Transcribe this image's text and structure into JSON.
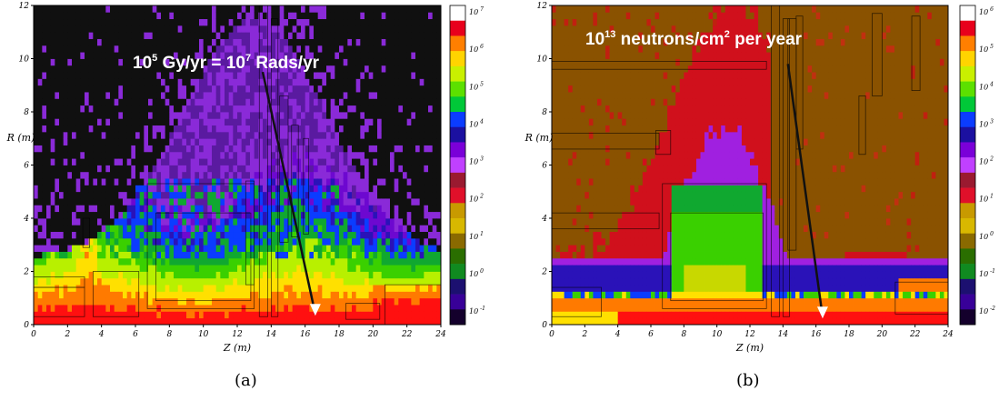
{
  "chart_data": [
    {
      "type": "heatmap",
      "panel_label": "(a)",
      "annotation": {
        "base1": "10",
        "exp1": "5",
        "mid": " Gy/yr = ",
        "base2": "10",
        "exp2": "7",
        "tail": " Rads/yr"
      },
      "xlabel": "Z (m)",
      "ylabel": "R (m)",
      "xlim": [
        0,
        24
      ],
      "ylim": [
        0,
        12
      ],
      "x_ticks": [
        "0",
        "2",
        "4",
        "6",
        "8",
        "10",
        "12",
        "14",
        "16",
        "18",
        "20",
        "22",
        "24"
      ],
      "y_ticks": [
        "0",
        "2",
        "4",
        "6",
        "8",
        "10",
        "12"
      ],
      "colorbar": {
        "labels": [
          {
            "base": "10",
            "exp": "7"
          },
          {
            "base": "10",
            "exp": "6"
          },
          {
            "base": "10",
            "exp": "5"
          },
          {
            "base": "10",
            "exp": "4"
          },
          {
            "base": "10",
            "exp": "3"
          },
          {
            "base": "10",
            "exp": "2"
          },
          {
            "base": "10",
            "exp": "1"
          },
          {
            "base": "10",
            "exp": "0"
          },
          {
            "base": "10",
            "exp": "-1"
          }
        ],
        "colors": [
          "#ffffff",
          "#e8001c",
          "#ff7f00",
          "#ffd400",
          "#c9f000",
          "#5ce000",
          "#00c838",
          "#0b3cff",
          "#1b10a0",
          "#7a00d8",
          "#c040ff",
          "#9a1a30",
          "#e0102a",
          "#c89a00",
          "#d8b800",
          "#8a6a00",
          "#2a6e00",
          "#108a20",
          "#1c1070",
          "#380098",
          "#14002c"
        ]
      },
      "arrow_color": "#ffffff"
    },
    {
      "type": "heatmap",
      "panel_label": "(b)",
      "annotation": {
        "base1": "10",
        "exp1": "13",
        "mid": " neutrons/cm",
        "base2": "",
        "exp2": "2",
        "tail": " per year"
      },
      "xlabel": "Z (m)",
      "ylabel": "R (m)",
      "xlim": [
        0,
        24
      ],
      "ylim": [
        0,
        12
      ],
      "x_ticks": [
        "0",
        "2",
        "4",
        "6",
        "8",
        "10",
        "12",
        "14",
        "16",
        "18",
        "20",
        "22",
        "24"
      ],
      "y_ticks": [
        "0",
        "2",
        "4",
        "6",
        "8",
        "10",
        "12"
      ],
      "colorbar": {
        "labels": [
          {
            "base": "10",
            "exp": "6"
          },
          {
            "base": "10",
            "exp": "5"
          },
          {
            "base": "10",
            "exp": "4"
          },
          {
            "base": "10",
            "exp": "3"
          },
          {
            "base": "10",
            "exp": "2"
          },
          {
            "base": "10",
            "exp": "1"
          },
          {
            "base": "10",
            "exp": "0"
          },
          {
            "base": "10",
            "exp": "-1"
          },
          {
            "base": "10",
            "exp": "-2"
          }
        ],
        "colors": [
          "#ffffff",
          "#e8001c",
          "#ff7f00",
          "#ffd400",
          "#c9f000",
          "#5ce000",
          "#00c838",
          "#0b3cff",
          "#1b10a0",
          "#7a00d8",
          "#c040ff",
          "#9a1a30",
          "#e0102a",
          "#c89a00",
          "#d8b800",
          "#8a6a00",
          "#2a6e00",
          "#108a20",
          "#1c1070",
          "#380098",
          "#14002c"
        ]
      },
      "arrow_color": "#ffffff"
    }
  ]
}
